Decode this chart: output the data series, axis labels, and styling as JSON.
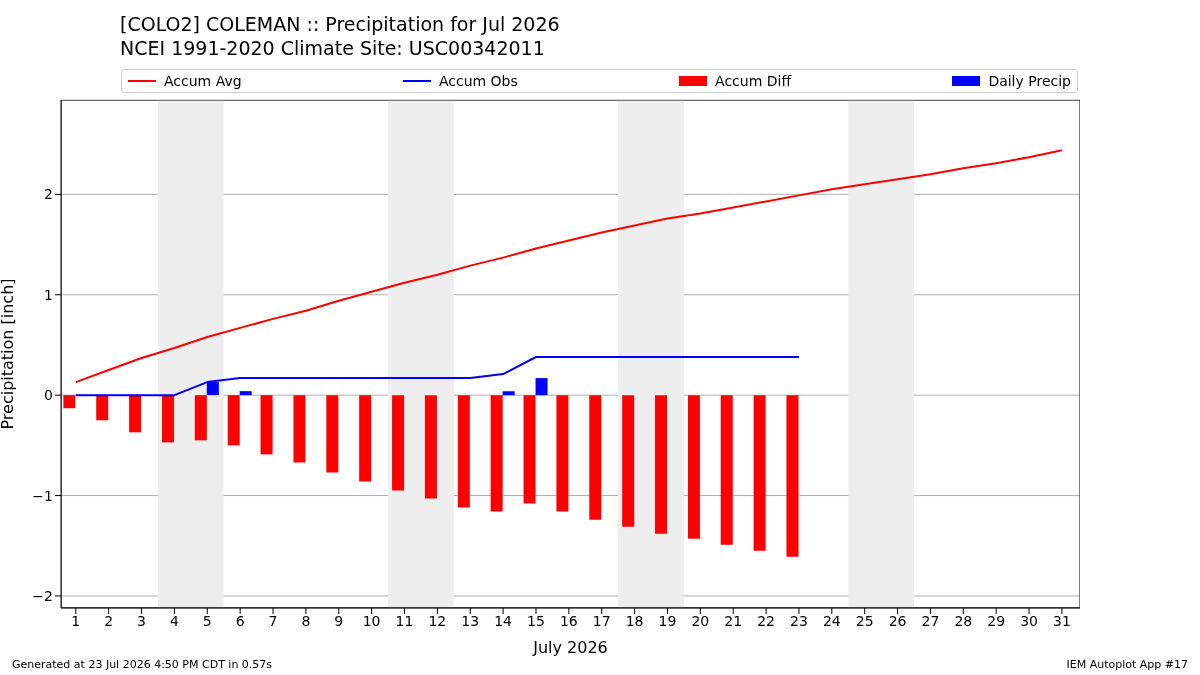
{
  "chart_data": {
    "type": "bar",
    "title": "[COLO2] COLEMAN :: Precipitation for Jul 2026",
    "subtitle": "NCEI 1991-2020 Climate Site: USC00342011",
    "xlabel": "July 2026",
    "ylabel": "Precipitation [inch]",
    "x": [
      1,
      2,
      3,
      4,
      5,
      6,
      7,
      8,
      9,
      10,
      11,
      12,
      13,
      14,
      15,
      16,
      17,
      18,
      19,
      20,
      21,
      22,
      23,
      24,
      25,
      26,
      27,
      28,
      29,
      30,
      31
    ],
    "series": [
      {
        "name": "Accum Avg",
        "type": "line",
        "color": "#ff0000",
        "values": [
          0.13,
          0.25,
          0.37,
          0.47,
          0.58,
          0.67,
          0.76,
          0.84,
          0.94,
          1.03,
          1.12,
          1.2,
          1.29,
          1.37,
          1.46,
          1.54,
          1.62,
          1.69,
          1.76,
          1.81,
          1.87,
          1.93,
          1.99,
          2.05,
          2.1,
          2.15,
          2.2,
          2.26,
          2.31,
          2.37,
          2.44
        ]
      },
      {
        "name": "Accum Obs",
        "type": "line",
        "color": "#0000ff",
        "values": [
          0,
          0,
          0,
          0,
          0.13,
          0.17,
          0.17,
          0.17,
          0.17,
          0.17,
          0.17,
          0.17,
          0.17,
          0.21,
          0.38,
          0.38,
          0.38,
          0.38,
          0.38,
          0.38,
          0.38,
          0.38,
          0.38,
          null,
          null,
          null,
          null,
          null,
          null,
          null,
          null
        ]
      },
      {
        "name": "Accum Diff",
        "color": "#ff0000",
        "values": [
          -0.13,
          -0.25,
          -0.37,
          -0.47,
          -0.45,
          -0.5,
          -0.59,
          -0.67,
          -0.77,
          -0.86,
          -0.95,
          -1.03,
          -1.12,
          -1.16,
          -1.08,
          -1.16,
          -1.24,
          -1.31,
          -1.38,
          -1.43,
          -1.49,
          -1.55,
          -1.61,
          null,
          null,
          null,
          null,
          null,
          null,
          null,
          null
        ]
      },
      {
        "name": "Daily Precip",
        "color": "#0000ff",
        "values": [
          0,
          0,
          0,
          0,
          0.13,
          0.04,
          0,
          0,
          0,
          0,
          0,
          0,
          0,
          0.04,
          0.17,
          0,
          0,
          0,
          0,
          0,
          0,
          0,
          0,
          null,
          null,
          null,
          null,
          null,
          null,
          null,
          null
        ]
      }
    ],
    "xlim": [
      0.55,
      31.55
    ],
    "xticks": [
      1,
      2,
      3,
      4,
      5,
      6,
      7,
      8,
      9,
      10,
      11,
      12,
      13,
      14,
      15,
      16,
      17,
      18,
      19,
      20,
      21,
      22,
      23,
      24,
      25,
      26,
      27,
      28,
      29,
      30,
      31
    ],
    "ylim": [
      -2.12,
      2.94
    ],
    "yticks": [
      -2,
      -1,
      0,
      1,
      2
    ],
    "bands": [
      {
        "axis": "x",
        "from": 3.5,
        "to": 5.5,
        "color": "#eeeeee"
      },
      {
        "axis": "x",
        "from": 10.5,
        "to": 12.5,
        "color": "#eeeeee"
      },
      {
        "axis": "x",
        "from": 17.5,
        "to": 19.5,
        "color": "#eeeeee"
      },
      {
        "axis": "x",
        "from": 24.5,
        "to": 26.5,
        "color": "#eeeeee"
      }
    ],
    "grid": "y",
    "legend": "top",
    "annotations": [
      "Generated at 23 Jul 2026 4:50 PM CDT in 0.57s",
      "IEM Autoplot App #17"
    ]
  }
}
